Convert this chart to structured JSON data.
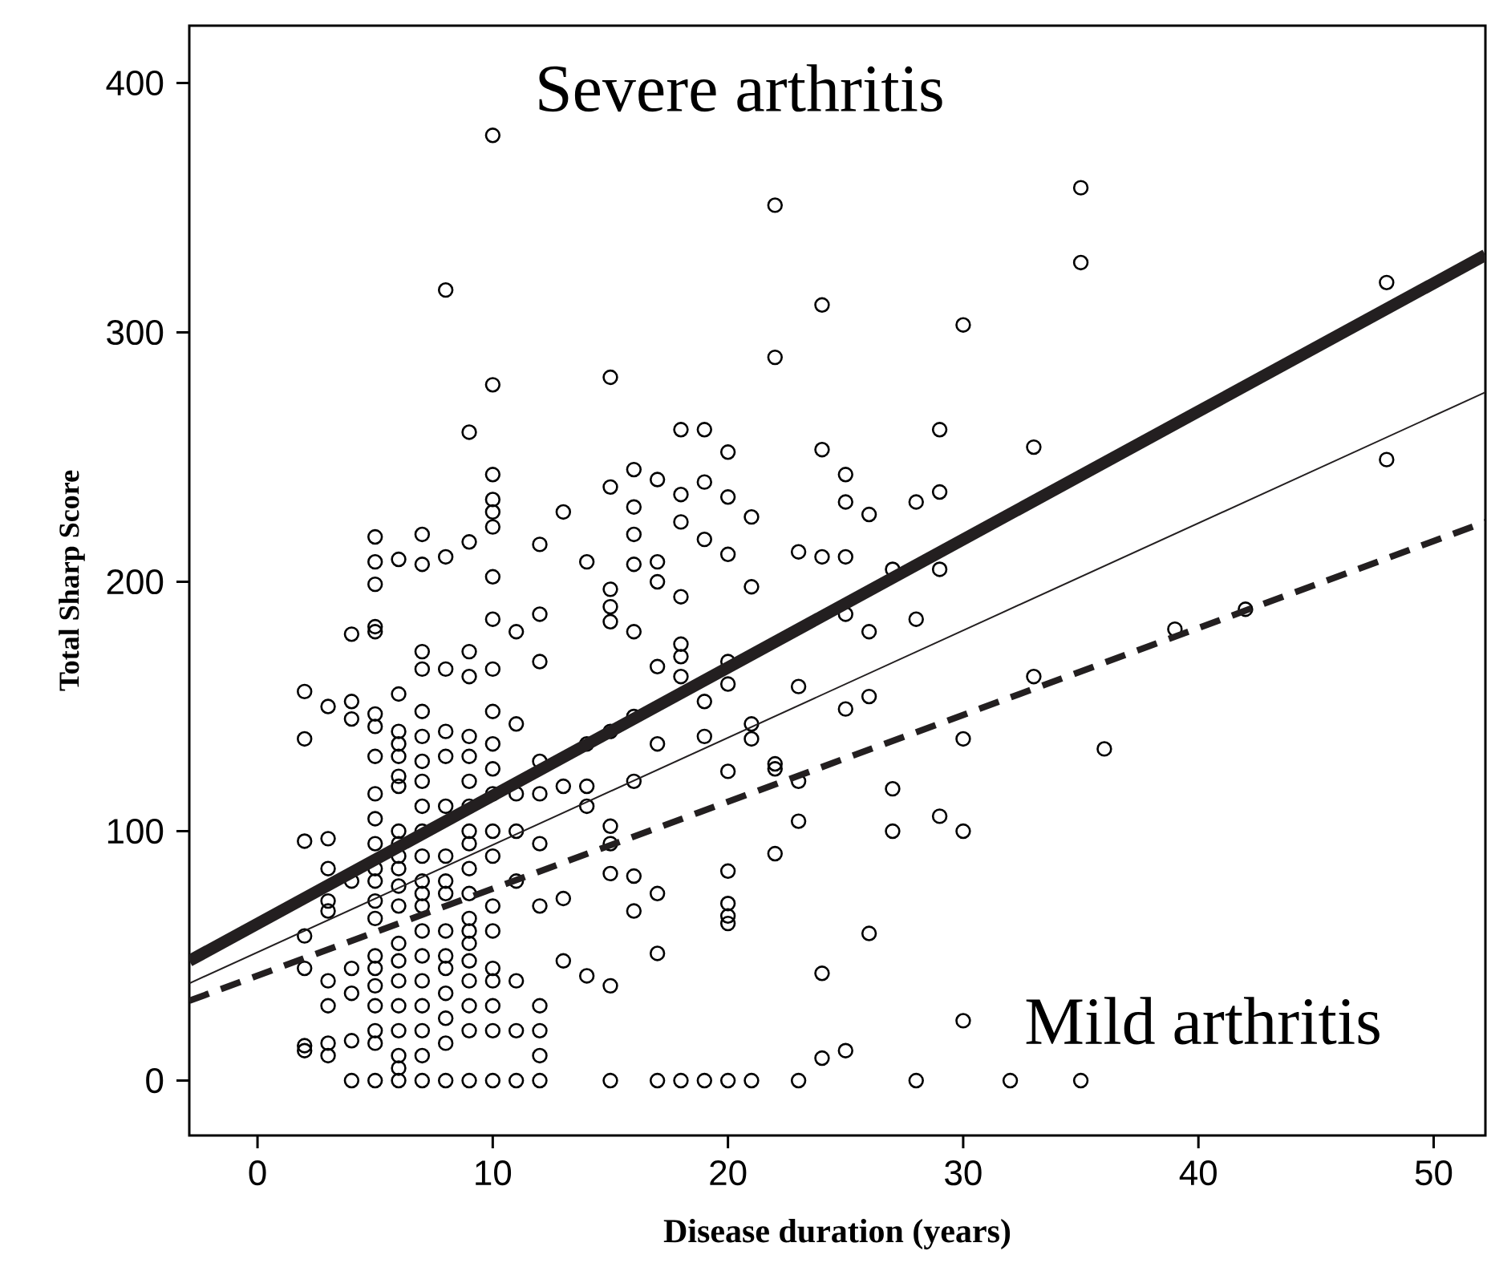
{
  "chart_data": {
    "type": "scatter",
    "xlabel": "Disease duration (years)",
    "ylabel": "Total Sharp  Score",
    "annotations": [
      "Severe arthritis",
      "Mild arthritis"
    ],
    "xlim": [
      -2.9,
      52.2
    ],
    "ylim": [
      -22,
      423
    ],
    "xticks": [
      0,
      10,
      20,
      30,
      40,
      50
    ],
    "yticks": [
      0,
      100,
      200,
      300,
      400
    ],
    "series": [
      {
        "marker": "circle",
        "color": "#000000",
        "x": [
          2,
          2,
          2,
          2,
          2,
          2,
          2,
          3,
          3,
          3,
          3,
          3,
          3,
          3,
          3,
          3,
          4,
          4,
          4,
          4,
          4,
          4,
          4,
          4,
          5,
          5,
          5,
          5,
          5,
          5,
          5,
          5,
          5,
          5,
          5,
          5,
          5,
          5,
          5,
          5,
          5,
          5,
          5,
          5,
          5,
          5,
          6,
          6,
          6,
          6,
          6,
          6,
          6,
          6,
          6,
          6,
          6,
          6,
          6,
          6,
          6,
          6,
          6,
          6,
          6,
          6,
          6,
          7,
          7,
          7,
          7,
          7,
          7,
          7,
          7,
          7,
          7,
          7,
          7,
          7,
          7,
          7,
          7,
          7,
          7,
          7,
          7,
          7,
          8,
          8,
          8,
          8,
          8,
          8,
          8,
          8,
          8,
          8,
          8,
          8,
          8,
          8,
          8,
          8,
          9,
          9,
          9,
          9,
          9,
          9,
          9,
          9,
          9,
          9,
          9,
          9,
          9,
          9,
          9,
          9,
          9,
          9,
          9,
          9,
          10,
          10,
          10,
          10,
          10,
          10,
          10,
          10,
          10,
          10,
          10,
          10,
          10,
          10,
          10,
          10,
          10,
          10,
          10,
          10,
          10,
          10,
          11,
          11,
          11,
          11,
          11,
          11,
          11,
          11,
          12,
          12,
          12,
          12,
          12,
          12,
          12,
          12,
          12,
          12,
          12,
          13,
          13,
          13,
          13,
          14,
          14,
          14,
          14,
          14,
          15,
          15,
          15,
          15,
          15,
          15,
          15,
          15,
          15,
          15,
          15,
          16,
          16,
          16,
          16,
          16,
          16,
          16,
          16,
          16,
          17,
          17,
          17,
          17,
          17,
          17,
          17,
          17,
          18,
          18,
          18,
          18,
          18,
          18,
          18,
          18,
          19,
          19,
          19,
          19,
          19,
          19,
          20,
          20,
          20,
          20,
          20,
          20,
          20,
          20,
          20,
          20,
          20,
          21,
          21,
          21,
          21,
          21,
          22,
          22,
          22,
          22,
          22,
          23,
          23,
          23,
          23,
          23,
          24,
          24,
          24,
          24,
          24,
          25,
          25,
          25,
          25,
          25,
          25,
          26,
          26,
          26,
          26,
          27,
          27,
          27,
          28,
          28,
          28,
          29,
          29,
          29,
          29,
          30,
          30,
          30,
          30,
          32,
          33,
          33,
          35,
          35,
          35,
          36,
          39,
          42,
          48,
          48
        ],
        "values": [
          156,
          137,
          96,
          58,
          45,
          14,
          12,
          150,
          97,
          85,
          72,
          68,
          30,
          40,
          10,
          15,
          179,
          152,
          145,
          80,
          45,
          35,
          16,
          0,
          218,
          208,
          199,
          182,
          180,
          147,
          142,
          130,
          115,
          105,
          95,
          85,
          80,
          72,
          65,
          50,
          45,
          38,
          30,
          20,
          15,
          0,
          209,
          155,
          140,
          135,
          130,
          122,
          118,
          100,
          95,
          90,
          85,
          78,
          70,
          55,
          48,
          40,
          30,
          20,
          10,
          5,
          0,
          219,
          207,
          172,
          165,
          148,
          138,
          128,
          120,
          110,
          100,
          90,
          80,
          75,
          70,
          60,
          50,
          40,
          30,
          20,
          10,
          0,
          317,
          210,
          165,
          140,
          130,
          110,
          90,
          80,
          75,
          60,
          50,
          45,
          35,
          25,
          15,
          0,
          260,
          216,
          172,
          162,
          138,
          130,
          120,
          110,
          100,
          95,
          85,
          75,
          65,
          60,
          55,
          48,
          40,
          30,
          20,
          0,
          379,
          279,
          243,
          233,
          228,
          222,
          202,
          185,
          165,
          148,
          135,
          125,
          115,
          100,
          90,
          70,
          60,
          45,
          40,
          30,
          20,
          0,
          180,
          143,
          115,
          100,
          80,
          40,
          20,
          0,
          215,
          187,
          168,
          128,
          115,
          95,
          70,
          30,
          20,
          10,
          0,
          228,
          118,
          73,
          48,
          208,
          135,
          118,
          110,
          42,
          282,
          238,
          197,
          190,
          184,
          140,
          102,
          95,
          83,
          38,
          0,
          245,
          230,
          219,
          207,
          180,
          146,
          120,
          82,
          68,
          241,
          208,
          200,
          166,
          135,
          75,
          51,
          0,
          261,
          235,
          224,
          194,
          175,
          170,
          162,
          0,
          261,
          240,
          217,
          152,
          138,
          0,
          252,
          234,
          211,
          168,
          159,
          124,
          84,
          71,
          66,
          63,
          0,
          226,
          198,
          143,
          137,
          0,
          351,
          290,
          127,
          125,
          91,
          212,
          158,
          120,
          104,
          0,
          311,
          253,
          210,
          43,
          9,
          243,
          232,
          210,
          187,
          149,
          12,
          227,
          180,
          154,
          59,
          205,
          117,
          100,
          232,
          185,
          0,
          261,
          236,
          205,
          106,
          303,
          137,
          100,
          24,
          0,
          254,
          162,
          358,
          328,
          0,
          133,
          181,
          189,
          320,
          249
        ]
      },
      {
        "type": "line",
        "color": "#231f20",
        "line_style": "solid",
        "x": [
          -2.9,
          52.2
        ],
        "values": [
          48,
          331
        ]
      },
      {
        "type": "line",
        "color": "#231f20",
        "line_style": "solid",
        "x": [
          -2.9,
          52.2
        ],
        "values": [
          39,
          276
        ]
      },
      {
        "type": "line",
        "color": "#231f20",
        "line_style": "dashed",
        "x": [
          -2.9,
          52.2
        ],
        "values": [
          32,
          224
        ]
      }
    ]
  }
}
